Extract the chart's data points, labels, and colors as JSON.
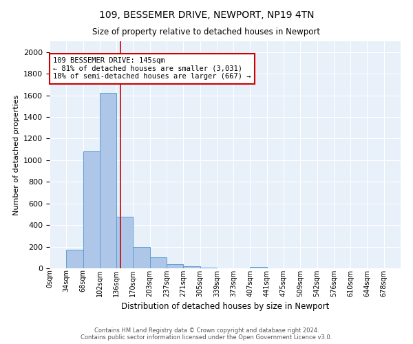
{
  "title1": "109, BESSEMER DRIVE, NEWPORT, NP19 4TN",
  "title2": "Size of property relative to detached houses in Newport",
  "xlabel": "Distribution of detached houses by size in Newport",
  "ylabel": "Number of detached properties",
  "bar_labels": [
    "0sqm",
    "34sqm",
    "68sqm",
    "102sqm",
    "136sqm",
    "170sqm",
    "203sqm",
    "237sqm",
    "271sqm",
    "305sqm",
    "339sqm",
    "373sqm",
    "407sqm",
    "441sqm",
    "475sqm",
    "509sqm",
    "542sqm",
    "576sqm",
    "610sqm",
    "644sqm",
    "678sqm"
  ],
  "bar_values": [
    0,
    170,
    1080,
    1620,
    480,
    200,
    100,
    40,
    20,
    5,
    0,
    0,
    15,
    0,
    0,
    0,
    0,
    0,
    0,
    0,
    0
  ],
  "bar_color": "#aec6e8",
  "bar_edgecolor": "#5a9fd4",
  "vline_x": 4.26,
  "vline_color": "#cc0000",
  "annotation_text": "109 BESSEMER DRIVE: 145sqm\n← 81% of detached houses are smaller (3,031)\n18% of semi-detached houses are larger (667) →",
  "annotation_box_edgecolor": "#cc0000",
  "ylim": [
    0,
    2100
  ],
  "background_color": "#e8f0fa",
  "footer1": "Contains HM Land Registry data © Crown copyright and database right 2024.",
  "footer2": "Contains public sector information licensed under the Open Government Licence v3.0."
}
